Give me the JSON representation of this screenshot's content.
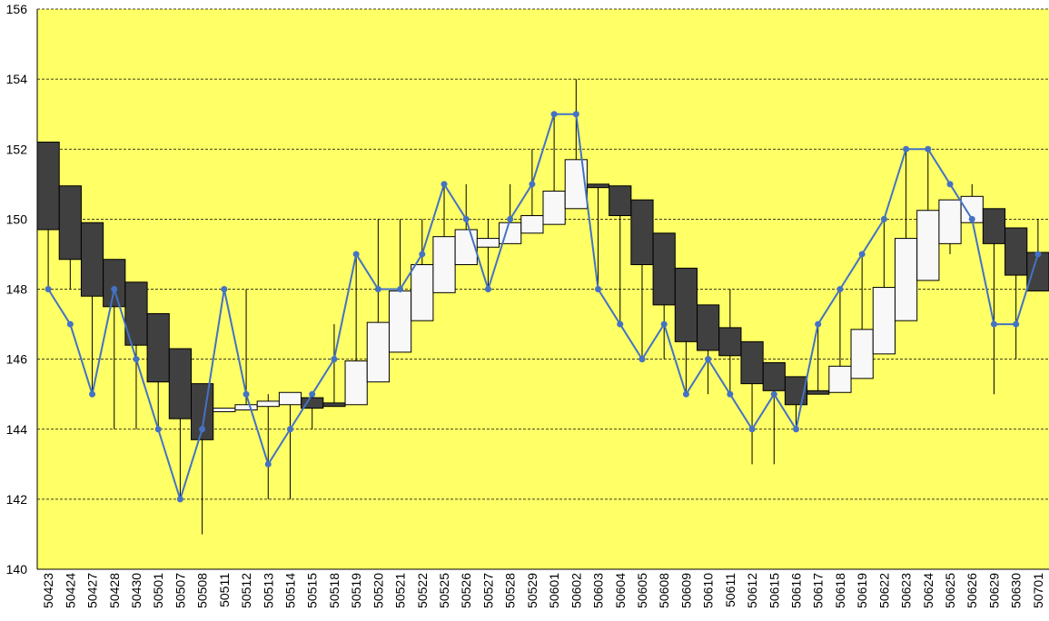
{
  "chart_data": {
    "type": "candlestick",
    "categories": [
      "50423",
      "50424",
      "50427",
      "50428",
      "50430",
      "50501",
      "50507",
      "50508",
      "50511",
      "50512",
      "50513",
      "50514",
      "50515",
      "50518",
      "50519",
      "50520",
      "50521",
      "50522",
      "50525",
      "50526",
      "50527",
      "50528",
      "50529",
      "50601",
      "50602",
      "50603",
      "50604",
      "50605",
      "50608",
      "50609",
      "50610",
      "50611",
      "50612",
      "50615",
      "50616",
      "50617",
      "50618",
      "50619",
      "50622",
      "50623",
      "50624",
      "50625",
      "50626",
      "50629",
      "50630",
      "50701"
    ],
    "open": [
      152.2,
      150.95,
      149.9,
      148.85,
      148.2,
      147.3,
      146.3,
      145.3,
      144.5,
      144.55,
      144.65,
      144.7,
      144.9,
      144.75,
      144.7,
      145.35,
      146.2,
      147.1,
      147.9,
      148.7,
      149.2,
      149.3,
      149.6,
      149.85,
      150.3,
      151.0,
      150.95,
      150.55,
      149.6,
      148.6,
      147.55,
      146.9,
      146.5,
      145.9,
      145.5,
      145.1,
      145.05,
      145.45,
      146.15,
      147.1,
      148.25,
      149.3,
      149.9,
      150.3,
      149.75,
      149.05
    ],
    "high": [
      152.2,
      150.95,
      149.9,
      148.85,
      148.2,
      147.3,
      146.3,
      145.3,
      144.6,
      148,
      145,
      145.05,
      145,
      147,
      149,
      150,
      150,
      150,
      151,
      151,
      150,
      151,
      152,
      153,
      154,
      151,
      150.95,
      150.55,
      149.6,
      148.6,
      147.55,
      148,
      146.5,
      145.9,
      145.5,
      147,
      148,
      149,
      150,
      152,
      152,
      150.55,
      151,
      150.3,
      149.75,
      150
    ],
    "low": [
      148,
      148,
      145,
      144,
      144,
      144,
      142,
      141,
      144.5,
      144.55,
      142,
      142,
      144,
      144.65,
      144.7,
      145.35,
      146.2,
      147.1,
      147.9,
      148.7,
      148,
      149.3,
      149.6,
      149.85,
      150.3,
      148,
      147,
      146,
      146,
      145,
      145,
      145,
      143,
      143,
      144,
      145,
      145.05,
      145.45,
      146.15,
      147.1,
      148.25,
      149,
      149.9,
      145,
      146,
      147.95
    ],
    "close": [
      149.7,
      148.85,
      147.8,
      147.5,
      146.4,
      145.35,
      144.3,
      143.7,
      144.6,
      144.7,
      144.8,
      145.05,
      144.6,
      144.65,
      145.95,
      147.05,
      147.95,
      148.7,
      149.5,
      149.7,
      149.45,
      149.9,
      150.1,
      150.8,
      151.7,
      150.9,
      150.1,
      148.7,
      147.55,
      146.5,
      146.25,
      146.1,
      145.3,
      145.1,
      144.7,
      145.0,
      145.8,
      146.85,
      148.05,
      149.45,
      150.25,
      150.55,
      150.65,
      149.3,
      148.4,
      147.95
    ],
    "up_color": "#f8f8f8",
    "down_color": "#404040",
    "background": "#ffff66",
    "line": {
      "color": "#4472c4",
      "values": [
        148,
        147,
        145,
        148,
        146,
        144,
        142,
        144,
        148,
        145,
        143,
        144,
        145,
        146,
        149,
        148,
        148,
        149,
        151,
        150,
        148,
        150,
        151,
        153,
        153,
        148,
        147,
        146,
        147,
        145,
        146,
        145,
        144,
        145,
        144,
        147,
        148,
        149,
        150,
        152,
        152,
        151,
        150,
        147,
        147,
        149
      ]
    },
    "ylim": [
      140,
      156
    ],
    "yticks": [
      140,
      142,
      144,
      146,
      148,
      150,
      152,
      154,
      156
    ],
    "grid": true
  }
}
